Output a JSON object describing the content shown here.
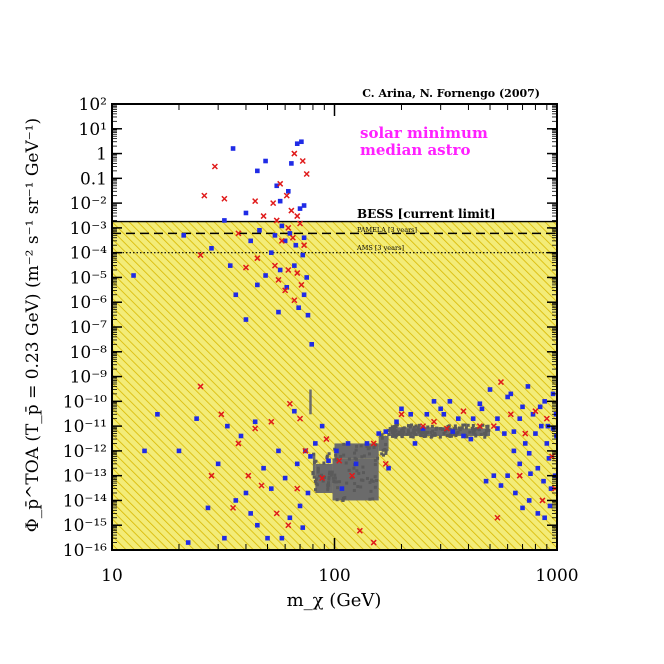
{
  "chart_data": {
    "type": "scatter",
    "credit": "C. Arina, N. Fornengo (2007)",
    "legend": [
      "solar minimum",
      "median astro"
    ],
    "xlabel": "m_χ  (GeV)",
    "ylabel": "Φ_p̄^TOA (T_p̄ = 0.23 GeV)   (m⁻² s⁻¹ sr⁻¹ GeV⁻¹)",
    "xscale": "log",
    "yscale": "log",
    "xlim": [
      10,
      1000
    ],
    "ylim": [
      1e-16,
      100
    ],
    "x_ticks": [
      {
        "value": 10,
        "label": "10"
      },
      {
        "value": 100,
        "label": "100"
      },
      {
        "value": 1000,
        "label": "1000"
      }
    ],
    "y_ticks": [
      {
        "exp": 2,
        "label": "10²"
      },
      {
        "exp": 1,
        "label": "10¹"
      },
      {
        "exp": 0,
        "label": "1"
      },
      {
        "exp": -1,
        "label": "0.1"
      },
      {
        "exp": -2,
        "label": "10⁻²"
      },
      {
        "exp": -3,
        "label": "10⁻³"
      },
      {
        "exp": -4,
        "label": "10⁻⁴"
      },
      {
        "exp": -5,
        "label": "10⁻⁵"
      },
      {
        "exp": -6,
        "label": "10⁻⁶"
      },
      {
        "exp": -7,
        "label": "10⁻⁷"
      },
      {
        "exp": -8,
        "label": "10⁻⁸"
      },
      {
        "exp": -9,
        "label": "10⁻⁹"
      },
      {
        "exp": -10,
        "label": "10⁻¹⁰"
      },
      {
        "exp": -11,
        "label": "10⁻¹¹"
      },
      {
        "exp": -12,
        "label": "10⁻¹²"
      },
      {
        "exp": -13,
        "label": "10⁻¹³"
      },
      {
        "exp": -14,
        "label": "10⁻¹⁴"
      },
      {
        "exp": -15,
        "label": "10⁻¹⁵"
      },
      {
        "exp": -16,
        "label": "10⁻¹⁶"
      }
    ],
    "limits": [
      {
        "name": "BESS [current limit]",
        "value": 0.0018,
        "style": "solid"
      },
      {
        "name": "PAMELA [3 years]",
        "value": 0.0006,
        "style": "dashed"
      },
      {
        "name": "AMS [3 years]",
        "value": 0.0001,
        "style": "dotted"
      }
    ],
    "shaded_region": {
      "below": 0.0018,
      "color": "#f3ec78",
      "hatch": "#d9b800"
    },
    "colors": {
      "blue": "#1f2be6",
      "red": "#e01a1a",
      "gray": "#6b6b6b",
      "magenta": "#ff20ff"
    },
    "series": [
      {
        "name": "blue models",
        "marker": "square",
        "color": "#1f2be6",
        "points": [
          [
            35,
            1.6
          ],
          [
            68,
            2.5
          ],
          [
            71,
            3
          ],
          [
            49,
            0.5
          ],
          [
            64,
            0.4
          ],
          [
            55,
            0.05
          ],
          [
            62,
            0.03
          ],
          [
            45,
            0.2
          ],
          [
            57,
            0.012
          ],
          [
            73,
            0.008
          ],
          [
            40,
            0.004
          ],
          [
            32,
            0.002
          ],
          [
            70,
            0.006
          ],
          [
            58,
            0.0012
          ],
          [
            46,
            0.0008
          ],
          [
            21,
            0.0005
          ],
          [
            54,
            0.0005
          ],
          [
            63,
            0.0006
          ],
          [
            60,
            0.0003
          ],
          [
            73,
            0.0004
          ],
          [
            28,
            0.00015
          ],
          [
            42,
            0.0003
          ],
          [
            67,
            0.0002
          ],
          [
            52,
            0.0001
          ],
          [
            72,
            8e-05
          ],
          [
            34,
            3e-05
          ],
          [
            57,
            2e-05
          ],
          [
            49,
            1.2e-05
          ],
          [
            66,
            3e-05
          ],
          [
            75,
            1e-05
          ],
          [
            45,
            5e-06
          ],
          [
            61,
            4e-06
          ],
          [
            73,
            2e-06
          ],
          [
            36,
            2e-06
          ],
          [
            69,
            6e-07
          ],
          [
            56,
            4e-07
          ],
          [
            40,
            2e-07
          ],
          [
            76,
            3e-07
          ],
          [
            12.5,
            1.2e-05
          ],
          [
            79,
            2e-08
          ],
          [
            14,
            1e-12
          ],
          [
            16,
            3e-11
          ],
          [
            20,
            1e-12
          ],
          [
            24,
            2e-11
          ],
          [
            30,
            3e-13
          ],
          [
            33,
            1e-11
          ],
          [
            38,
            4e-12
          ],
          [
            44,
            1.5e-11
          ],
          [
            48,
            2e-13
          ],
          [
            52,
            3e-14
          ],
          [
            56,
            1e-12
          ],
          [
            60,
            8e-14
          ],
          [
            63,
            2e-15
          ],
          [
            66,
            4e-11
          ],
          [
            68,
            3e-13
          ],
          [
            40,
            2e-14
          ],
          [
            45,
            1e-15
          ],
          [
            32,
            3e-16
          ],
          [
            50,
            3e-16
          ],
          [
            72,
            8e-16
          ],
          [
            76,
            2e-14
          ],
          [
            22,
            2e-16
          ],
          [
            27,
            5e-15
          ],
          [
            36,
            1e-14
          ],
          [
            42,
            3e-15
          ],
          [
            58,
            3e-16
          ],
          [
            70,
            6e-15
          ],
          [
            74,
            1e-12
          ],
          [
            78,
            6e-13
          ],
          [
            82,
            2e-12
          ],
          [
            88,
            1e-11
          ],
          [
            94,
            4e-13
          ],
          [
            102,
            1e-12
          ],
          [
            108,
            3e-14
          ],
          [
            115,
            2e-12
          ],
          [
            125,
            3e-13
          ],
          [
            140,
            2e-12
          ],
          [
            158,
            5e-12
          ],
          [
            170,
            6e-12
          ],
          [
            200,
            5e-11
          ],
          [
            230,
            2e-12
          ],
          [
            260,
            3e-11
          ],
          [
            280,
            1e-10
          ],
          [
            310,
            3e-11
          ],
          [
            340,
            6e-12
          ],
          [
            380,
            4e-12
          ],
          [
            420,
            2e-11
          ],
          [
            460,
            5e-11
          ],
          [
            500,
            3e-10
          ],
          [
            540,
            2e-11
          ],
          [
            580,
            5e-12
          ],
          [
            620,
            2e-10
          ],
          [
            640,
            1e-12
          ],
          [
            680,
            3e-13
          ],
          [
            700,
            6e-11
          ],
          [
            720,
            2e-12
          ],
          [
            750,
            8e-13
          ],
          [
            780,
            3e-11
          ],
          [
            800,
            5e-12
          ],
          [
            820,
            2e-13
          ],
          [
            850,
            1e-11
          ],
          [
            870,
            6e-14
          ],
          [
            900,
            2e-12
          ],
          [
            920,
            5e-13
          ],
          [
            940,
            3e-14
          ],
          [
            960,
            8e-12
          ],
          [
            980,
            1e-13
          ],
          [
            995,
            4e-12
          ],
          [
            600,
            1e-13
          ],
          [
            650,
            2e-14
          ],
          [
            700,
            5e-15
          ],
          [
            750,
            1e-14
          ],
          [
            820,
            3e-15
          ],
          [
            880,
            2e-15
          ],
          [
            930,
            6e-15
          ],
          [
            560,
            4e-14
          ],
          [
            520,
            1e-13
          ],
          [
            480,
            6e-14
          ],
          [
            450,
            8e-11
          ],
          [
            410,
            3e-12
          ],
          [
            360,
            2e-11
          ],
          [
            330,
            1e-10
          ],
          [
            300,
            5e-11
          ],
          [
            250,
            8e-12
          ],
          [
            220,
            3e-11
          ],
          [
            190,
            1.5e-11
          ],
          [
            175,
            2e-13
          ],
          [
            600,
            1.5e-10
          ],
          [
            740,
            4e-10
          ],
          [
            880,
            1e-10
          ],
          [
            960,
            2e-10
          ],
          [
            840,
            6e-11
          ],
          [
            680,
            2e-11
          ],
          [
            540,
            8e-12
          ],
          [
            910,
            1e-11
          ],
          [
            990,
            3e-11
          ],
          [
            760,
            1.2e-13
          ],
          [
            640,
            6e-12
          ]
        ]
      },
      {
        "name": "red models",
        "marker": "cross",
        "color": "#e01a1a",
        "points": [
          [
            29,
            0.3
          ],
          [
            32,
            0.015
          ],
          [
            26,
            0.02
          ],
          [
            44,
            0.012
          ],
          [
            53,
            0.01
          ],
          [
            57,
            0.06
          ],
          [
            61,
            0.02
          ],
          [
            64,
            0.005
          ],
          [
            68,
            0.003
          ],
          [
            72,
            0.5
          ],
          [
            75,
            0.15
          ],
          [
            66,
            1.0
          ],
          [
            48,
            0.003
          ],
          [
            55,
            0.002
          ],
          [
            62,
            0.001
          ],
          [
            70,
            0.0015
          ],
          [
            37,
            0.0006
          ],
          [
            58,
            0.0003
          ],
          [
            65,
            0.0004
          ],
          [
            73,
            0.0002
          ],
          [
            25,
            8e-05
          ],
          [
            45,
            6e-05
          ],
          [
            54,
            3e-05
          ],
          [
            62,
            2e-05
          ],
          [
            68,
            1.5e-05
          ],
          [
            56,
            8e-06
          ],
          [
            71,
            5e-06
          ],
          [
            60,
            3e-06
          ],
          [
            66,
            1.2e-06
          ],
          [
            40,
            2.5e-05
          ],
          [
            25,
            4e-10
          ],
          [
            31,
            3e-11
          ],
          [
            37,
            2e-12
          ],
          [
            44,
            8e-12
          ],
          [
            52,
            1.5e-11
          ],
          [
            63,
            8e-11
          ],
          [
            70,
            2e-11
          ],
          [
            28,
            1e-13
          ],
          [
            35,
            5e-15
          ],
          [
            41,
            1e-13
          ],
          [
            47,
            4e-14
          ],
          [
            55,
            3e-15
          ],
          [
            62,
            1e-15
          ],
          [
            68,
            3e-14
          ],
          [
            74,
            1e-12
          ],
          [
            120,
            1e-13
          ],
          [
            150,
            2e-12
          ],
          [
            200,
            3e-11
          ],
          [
            250,
            1e-11
          ],
          [
            280,
            1.5e-11
          ],
          [
            320,
            8e-12
          ],
          [
            380,
            4e-11
          ],
          [
            450,
            1e-11
          ],
          [
            520,
            1e-11
          ],
          [
            560,
            6e-10
          ],
          [
            620,
            3e-11
          ],
          [
            680,
            1e-13
          ],
          [
            720,
            5e-12
          ],
          [
            800,
            4e-11
          ],
          [
            860,
            1e-14
          ],
          [
            900,
            2e-11
          ],
          [
            950,
            6e-13
          ],
          [
            980,
            3e-14
          ],
          [
            130,
            6e-16
          ],
          [
            150,
            2e-16
          ],
          [
            170,
            3e-13
          ],
          [
            92,
            3e-12
          ],
          [
            105,
            4e-13
          ],
          [
            88,
            8e-14
          ],
          [
            540,
            2e-15
          ]
        ]
      }
    ]
  }
}
